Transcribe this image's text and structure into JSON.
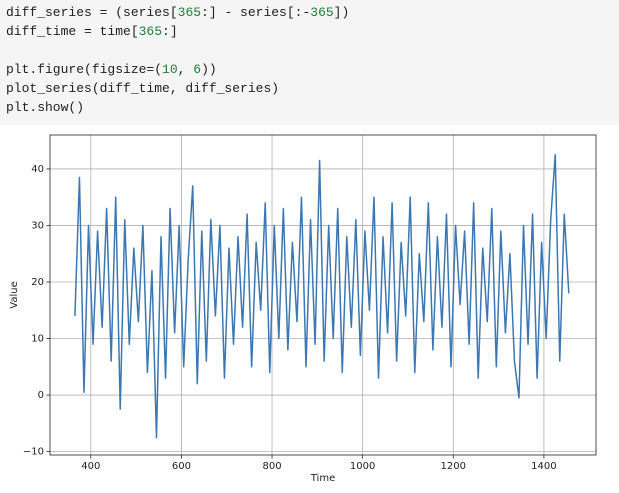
{
  "code": {
    "blocks": [
      [
        [
          "diff_series = (series[",
          "365",
          ":] - series[:-",
          "365",
          "])"
        ],
        [
          "diff_time = time[",
          "365",
          ":]"
        ]
      ],
      [
        [
          "plt.figure(figsize=(",
          "10",
          ", ",
          "6",
          "))"
        ],
        [
          "plot_series(diff_time, diff_series)"
        ],
        [
          "plt.show()"
        ]
      ]
    ]
  },
  "chart_data": {
    "type": "line",
    "xlabel": "Time",
    "ylabel": "Value",
    "grid": true,
    "color": "#3b77b3",
    "xlim": [
      310,
      1515
    ],
    "ylim": [
      -10.6,
      46
    ],
    "xticks": [
      400,
      600,
      800,
      1000,
      1200,
      1400
    ],
    "yticks": [
      {
        "value": -10,
        "label": "−10"
      },
      0,
      10,
      20,
      30,
      40
    ],
    "x": [
      365,
      375,
      385,
      395,
      405,
      415,
      425,
      435,
      445,
      455,
      465,
      475,
      485,
      495,
      505,
      515,
      525,
      535,
      545,
      555,
      565,
      575,
      585,
      595,
      605,
      615,
      625,
      635,
      645,
      655,
      665,
      675,
      685,
      695,
      705,
      715,
      725,
      735,
      745,
      755,
      765,
      775,
      785,
      795,
      805,
      815,
      825,
      835,
      845,
      855,
      865,
      875,
      885,
      895,
      905,
      915,
      925,
      935,
      945,
      955,
      965,
      975,
      985,
      995,
      1005,
      1015,
      1025,
      1035,
      1045,
      1055,
      1065,
      1075,
      1085,
      1095,
      1105,
      1115,
      1125,
      1135,
      1145,
      1155,
      1165,
      1175,
      1185,
      1195,
      1205,
      1215,
      1225,
      1235,
      1245,
      1255,
      1265,
      1275,
      1285,
      1295,
      1305,
      1315,
      1325,
      1335,
      1345,
      1355,
      1365,
      1375,
      1385,
      1395,
      1405,
      1415,
      1425,
      1435,
      1445,
      1455
    ],
    "values": [
      14,
      38.5,
      0.5,
      30,
      9,
      29,
      12,
      33,
      6,
      35,
      -2.5,
      31,
      9,
      26,
      13,
      30,
      4,
      22,
      -7.5,
      28,
      3,
      33,
      11,
      30,
      5,
      24,
      37,
      2,
      29,
      6,
      31,
      14,
      30,
      3,
      26,
      9,
      28,
      12,
      32,
      5,
      27,
      15,
      34,
      4,
      30,
      10,
      33,
      8,
      27,
      13,
      35,
      5,
      31,
      9,
      41.5,
      6,
      30,
      10,
      33,
      4,
      28,
      12,
      31,
      7,
      29,
      15,
      35,
      3,
      28,
      11,
      34,
      6,
      27,
      14,
      35,
      4,
      25,
      13,
      34,
      8,
      28,
      12,
      32,
      5,
      30,
      16,
      29,
      9,
      34,
      3,
      26,
      13,
      33,
      5,
      29,
      11,
      25,
      6,
      -0.5,
      30,
      9,
      32,
      3,
      27,
      10,
      31,
      42.5,
      6,
      32,
      18
    ]
  }
}
